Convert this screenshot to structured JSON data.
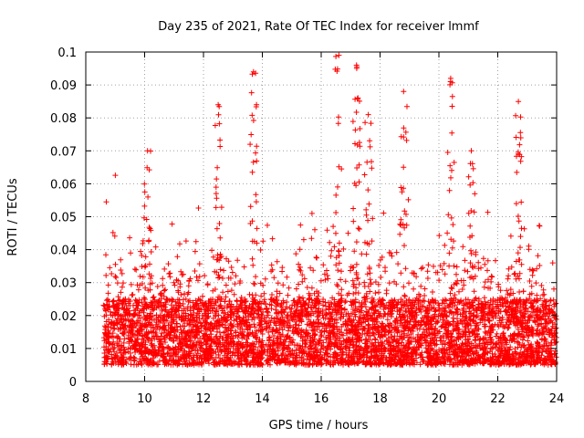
{
  "chart_data": {
    "type": "scatter",
    "title": "Day 235 of 2021, Rate Of TEC Index for receiver lmmf",
    "xlabel": "GPS time / hours",
    "ylabel": "ROTI / TECUs",
    "xlim": [
      8,
      24
    ],
    "ylim": [
      0,
      0.1
    ],
    "xticks": [
      8,
      10,
      12,
      14,
      16,
      18,
      20,
      22,
      24
    ],
    "xtick_labels": [
      "8",
      "10",
      "12",
      "14",
      "16",
      "18",
      "20",
      "22",
      "24"
    ],
    "yticks": [
      0,
      0.01,
      0.02,
      0.03,
      0.04,
      0.05,
      0.06,
      0.07,
      0.08,
      0.09,
      0.1
    ],
    "ytick_labels": [
      "0",
      "0.01",
      "0.02",
      "0.03",
      "0.04",
      "0.05",
      "0.06",
      "0.07",
      "0.08",
      "0.09",
      "0.1"
    ],
    "grid": true,
    "marker": "+",
    "color": "#ff0000",
    "series": [
      {
        "name": "ROTI",
        "data_range_x": [
          8.6,
          24
        ],
        "typical_band": [
          0.005,
          0.025
        ],
        "notable_peaks": [
          {
            "x": 10.1,
            "y": 0.07
          },
          {
            "x": 12.5,
            "y": 0.084
          },
          {
            "x": 13.7,
            "y": 0.094
          },
          {
            "x": 16.6,
            "y": 0.099
          },
          {
            "x": 17.2,
            "y": 0.096
          },
          {
            "x": 17.6,
            "y": 0.081
          },
          {
            "x": 18.8,
            "y": 0.088
          },
          {
            "x": 20.4,
            "y": 0.092
          },
          {
            "x": 21.1,
            "y": 0.07
          },
          {
            "x": 22.7,
            "y": 0.085
          }
        ]
      }
    ]
  }
}
